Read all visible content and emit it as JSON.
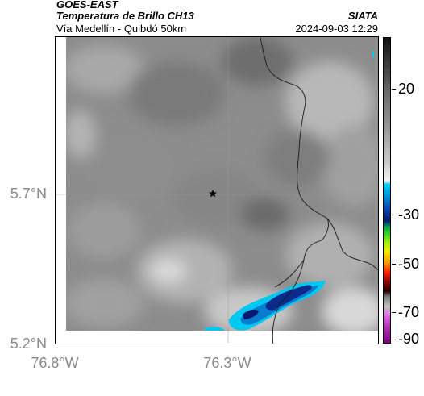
{
  "header": {
    "satellite": "GOES-EAST",
    "product": "Temperatura de Brillo CH13",
    "route": "Vía Medellín - Quibdó 50km",
    "agency": "SIATA",
    "timestamp": "2024-09-03 12:29"
  },
  "map": {
    "lat_labels": [
      "5.7°N",
      "5.2°N"
    ],
    "lon_labels": [
      "76.8°W",
      "76.3°W"
    ],
    "marker_icon": "star-icon"
  },
  "colorbar": {
    "labels": [
      "20",
      "-30",
      "-50",
      "-70",
      "-90"
    ]
  },
  "colors": {
    "cloud_cold": "#0a2a8c",
    "cloud_edge": "#00c8f0",
    "border": "#222222"
  }
}
